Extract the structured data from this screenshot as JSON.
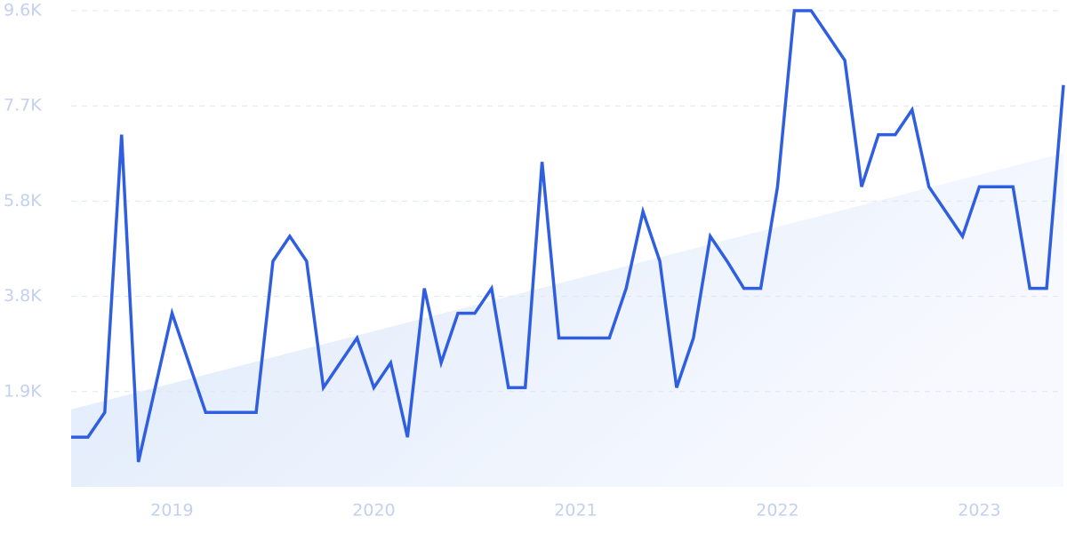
{
  "chart_data": {
    "type": "line",
    "categories": [
      null,
      null,
      null,
      null,
      null,
      null,
      "2019",
      null,
      null,
      null,
      null,
      null,
      null,
      null,
      null,
      null,
      null,
      null,
      "2020",
      null,
      null,
      null,
      null,
      null,
      null,
      null,
      null,
      null,
      null,
      null,
      "2021",
      null,
      null,
      null,
      null,
      null,
      null,
      null,
      null,
      null,
      null,
      null,
      "2022",
      null,
      null,
      null,
      null,
      null,
      null,
      null,
      null,
      null,
      null,
      null,
      "2023",
      null,
      null,
      null,
      null,
      null
    ],
    "series": [
      {
        "color": "#2f5fe0",
        "values": [
          1000,
          1000,
          1500,
          7100,
          500,
          2000,
          3500,
          2500,
          1500,
          1500,
          1500,
          1500,
          4550,
          5050,
          4550,
          2000,
          2500,
          3000,
          2000,
          2500,
          1000,
          4000,
          2500,
          3500,
          3500,
          4000,
          2000,
          2000,
          6550,
          3000,
          3000,
          3000,
          3000,
          4000,
          5550,
          4550,
          2000,
          3000,
          5050,
          4550,
          4000,
          4000,
          6050,
          9600,
          9600,
          9100,
          8600,
          6050,
          7100,
          7100,
          7600,
          6050,
          5550,
          5050,
          6050,
          6050,
          6050,
          4000,
          4000,
          8100
        ]
      }
    ],
    "trend": [
      1560,
      6730
    ],
    "ylim": [
      0,
      9600
    ],
    "yticks": [
      {
        "value": 1920,
        "label": "1.9K"
      },
      {
        "value": 3840,
        "label": "3.8K"
      },
      {
        "value": 5760,
        "label": "5.8K"
      },
      {
        "value": 7680,
        "label": "7.7K"
      },
      {
        "value": 9600,
        "label": "9.6K"
      }
    ],
    "grid": true
  }
}
